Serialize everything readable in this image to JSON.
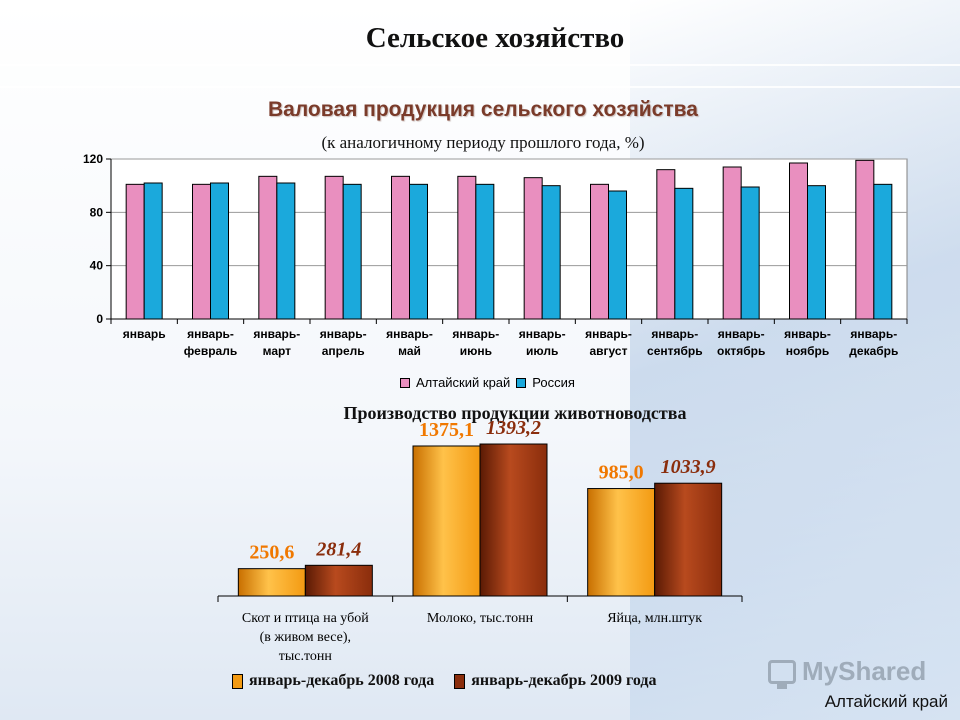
{
  "page": {
    "title": "Сельское хозяйство",
    "region": "Алтайский край",
    "watermark": "MyShared"
  },
  "chart_data": [
    {
      "type": "bar",
      "title": "Валовая продукция сельского хозяйства",
      "subtitle": "(к аналогичному периоду прошлого года, %)",
      "categories": [
        [
          "январь"
        ],
        [
          "январь-",
          "февраль"
        ],
        [
          "январь-",
          "март"
        ],
        [
          "январь-",
          "апрель"
        ],
        [
          "январь-",
          "май"
        ],
        [
          "январь-",
          "июнь"
        ],
        [
          "январь-",
          "июль"
        ],
        [
          "январь-",
          "август"
        ],
        [
          "январь-",
          "сентябрь"
        ],
        [
          "январь-",
          "октябрь"
        ],
        [
          "январь-",
          "ноябрь"
        ],
        [
          "январь-",
          "декабрь"
        ]
      ],
      "series": [
        {
          "name": "Алтайский край",
          "color": "#e98fbf",
          "values": [
            101,
            101,
            107,
            107,
            107,
            107,
            106,
            101,
            112,
            114,
            117,
            119
          ]
        },
        {
          "name": "Россия",
          "color": "#1ba9dc",
          "values": [
            102,
            102,
            102,
            101,
            101,
            101,
            100,
            96,
            98,
            99,
            100,
            101
          ]
        }
      ],
      "yticks": [
        0,
        40,
        80,
        120
      ],
      "ylim": [
        0,
        120
      ],
      "grid": true,
      "legend": "bottom"
    },
    {
      "type": "bar",
      "title": "Производство продукции животноводства",
      "categories": [
        [
          "Скот и птица на убой",
          "(в живом весе),",
          "тыс.тонн"
        ],
        [
          "Молоко, тыс.тонн"
        ],
        [
          "Яйца, млн.штук"
        ]
      ],
      "series": [
        {
          "name": "январь-декабрь 2008 года",
          "color": "#f39a12",
          "values": [
            250.6,
            1375.1,
            985.0
          ],
          "labels": [
            "250,6",
            "1375,1",
            "985,0"
          ]
        },
        {
          "name": "январь-декабрь 2009 года",
          "color": "#8a2d0c",
          "values": [
            281.4,
            1393.2,
            1033.9
          ],
          "labels": [
            "281,4",
            "1393,2",
            "1033,9"
          ]
        }
      ],
      "legend": "bottom"
    }
  ]
}
